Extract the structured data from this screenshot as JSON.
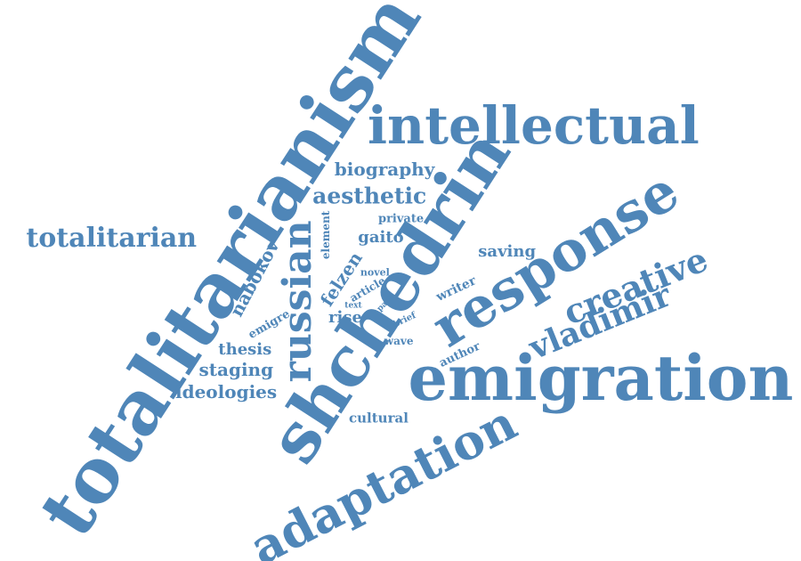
{
  "style": {
    "word_color": "#4f86b8",
    "background": "#ffffff"
  },
  "words": {
    "totalitarianism": "totalitarianism",
    "shchedrin": "shchedrin",
    "emigration": "emigration",
    "response": "response",
    "intellectual": "intellectual",
    "adaptation": "adaptation",
    "russian": "russian",
    "creative": "creative",
    "vladimir": "vladimir",
    "totalitarian": "totalitarian",
    "aesthetic": "aesthetic",
    "biography": "biography",
    "nabokov": "nabokov",
    "felzen": "felzen",
    "gaito": "gaito",
    "saving": "saving",
    "staging": "staging",
    "ideologies": "ideologies",
    "thesis": "thesis",
    "cultural": "cultural",
    "private": "private",
    "element": "element",
    "novel": "novel",
    "article": "article",
    "writer": "writer",
    "rise": "rise",
    "emigre": "emigre",
    "wave": "wave",
    "author": "author",
    "part": "part",
    "text": "text",
    "brief": "brief"
  }
}
